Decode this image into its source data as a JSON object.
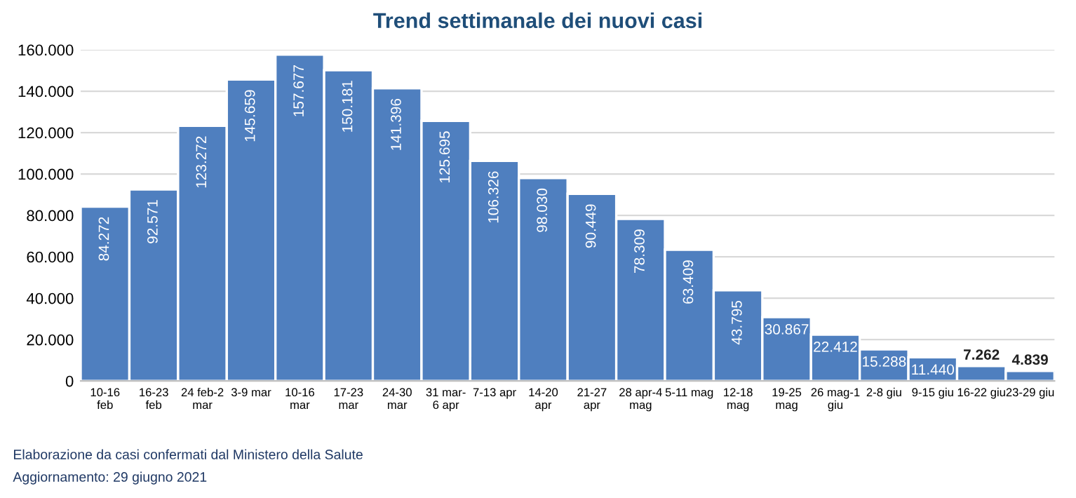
{
  "chart_data": {
    "type": "bar",
    "title": "Trend settimanale dei nuovi casi",
    "categories": [
      "10-16\nfeb",
      "16-23\nfeb",
      "24 feb-2\nmar",
      "3-9 mar",
      "10-16\nmar",
      "17-23\nmar",
      "24-30\nmar",
      "31 mar-\n6 apr",
      "7-13 apr",
      "14-20\napr",
      "21-27\napr",
      "28 apr-4\nmag",
      "5-11 mag",
      "12-18\nmag",
      "19-25\nmag",
      "26 mag-1\ngiu",
      "2-8 giu",
      "9-15 giu",
      "16-22 giu",
      "23-29 giu"
    ],
    "values": [
      84272,
      92571,
      123272,
      145659,
      157677,
      150181,
      141396,
      125695,
      106326,
      98030,
      90449,
      78309,
      63409,
      43795,
      30867,
      22412,
      15288,
      11440,
      7262,
      4839
    ],
    "value_labels": [
      "84.272",
      "92.571",
      "123.272",
      "145.659",
      "157.677",
      "150.181",
      "141.396",
      "125.695",
      "106.326",
      "98.030",
      "90.449",
      "78.309",
      "63.409",
      "43.795",
      "30.867",
      "22.412",
      "15.288",
      "11.440",
      "7.262",
      "4.839"
    ],
    "color": "#4f7fbf",
    "ylim": [
      0,
      160000
    ],
    "yticks": [
      {
        "value": 0,
        "label": "0"
      },
      {
        "value": 20000,
        "label": "20.000"
      },
      {
        "value": 40000,
        "label": "40.000"
      },
      {
        "value": 60000,
        "label": "60.000"
      },
      {
        "value": 80000,
        "label": "80.000"
      },
      {
        "value": 100000,
        "label": "100.000"
      },
      {
        "value": 120000,
        "label": "120.000"
      },
      {
        "value": 140000,
        "label": "140.000"
      },
      {
        "value": 160000,
        "label": "160.000"
      }
    ],
    "grid": "y",
    "annotations": [
      "Elaborazione da casi confermati dal Ministero della Salute",
      "Aggiornamento: 29 giugno 2021"
    ]
  }
}
